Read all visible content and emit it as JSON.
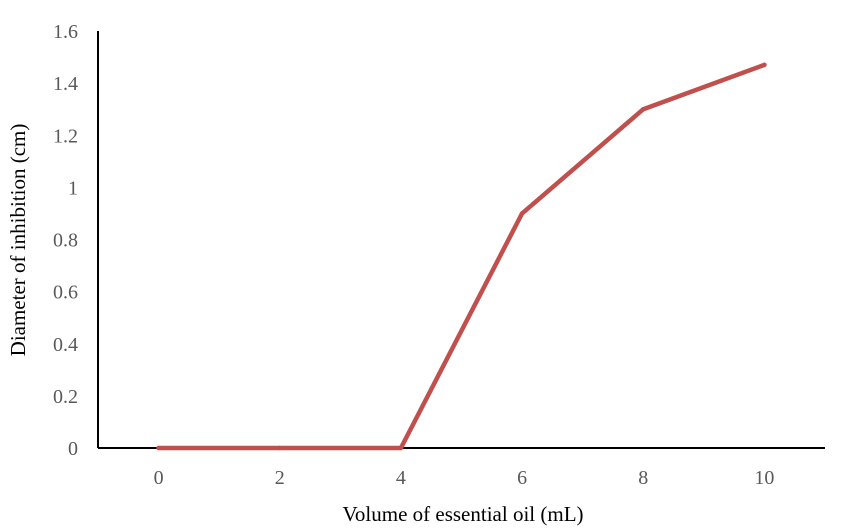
{
  "chart_data": {
    "type": "line",
    "title": "",
    "xlabel": "Volume of essential oil (mL)",
    "ylabel": "Diameter of inhibition (cm)",
    "categories": [
      "0",
      "2",
      "4",
      "6",
      "8",
      "10"
    ],
    "series": [
      {
        "values": [
          0,
          0,
          0,
          0.9,
          1.3,
          1.47
        ],
        "color": "#c0504d"
      }
    ],
    "ylim": [
      0,
      1.6
    ],
    "yticks": [
      "0",
      "0.2",
      "0.4",
      "0.6",
      "0.8",
      "1",
      "1.2",
      "1.4",
      "1.6"
    ],
    "grid": false,
    "legend": "none"
  }
}
